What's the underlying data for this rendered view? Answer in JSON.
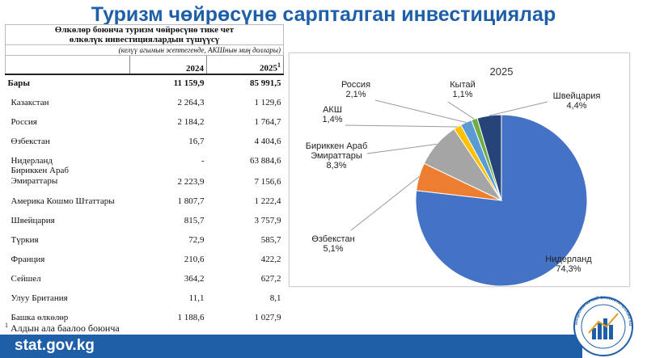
{
  "page": {
    "title": "Туризм чөйрөсүнө сарпталган инвестициялар",
    "site": "stat.gov.kg"
  },
  "table": {
    "header_line1": "Өлкөлөр боюнча  туризм чөйрөсүнө тике чет",
    "header_line2": "өлкөлүк инвестициялардын түшүүсү",
    "unit": "(келүү агымын эсептегенде, АКШнын миң доллары)",
    "col_2024": "2024",
    "col_2025": "2025",
    "col_2025_sup": "1",
    "total": {
      "name": "Бары",
      "v2024": "11 159,9",
      "v2025": "85 991,5"
    },
    "rows": [
      {
        "name": "Казакстан",
        "v2024": "2 264,3",
        "v2025": "1 129,6"
      },
      {
        "name": "Россия",
        "v2024": "2 184,2",
        "v2025": "1 764,7"
      },
      {
        "name": "Өзбекстан",
        "v2024": "16,7",
        "v2025": "4 404,6"
      },
      {
        "name": "Нидерланд",
        "v2024": "-",
        "v2025": "63 884,6"
      },
      {
        "name": "Бириккен Араб\nЭмираттары",
        "v2024": "2 223,9",
        "v2025": "7 156,6"
      },
      {
        "name": "Америка Кошмо Штаттары",
        "v2024": "1 807,7",
        "v2025": "1 222,4"
      },
      {
        "name": "Швейцария",
        "v2024": "815,7",
        "v2025": "3 757,9"
      },
      {
        "name": "Түркия",
        "v2024": "72,9",
        "v2025": "585,7"
      },
      {
        "name": "Франция",
        "v2024": "210,6",
        "v2025": "422,2"
      },
      {
        "name": "Сейшел",
        "v2024": "364,2",
        "v2025": "627,2"
      },
      {
        "name": "Улуу Британия",
        "v2024": "11,1",
        "v2025": "8,1"
      },
      {
        "name": "Башка өлкөлөр",
        "v2024": "1 188,6",
        "v2025": "1 027,9"
      }
    ],
    "footnote_mark": "1",
    "footnote": "Алдын ала баалоо боюнча"
  },
  "chart_data": {
    "type": "pie",
    "title": "2025",
    "slices": [
      {
        "label": "Нидерланд",
        "pct_text": "74,3%",
        "value": 74.3,
        "color": "#4472c4"
      },
      {
        "label": "Өзбекстан",
        "pct_text": "5,1%",
        "value": 5.1,
        "color": "#ed7d31"
      },
      {
        "label": "Бириккен Араб\nЭмираттары",
        "pct_text": "8,3%",
        "value": 8.3,
        "color": "#a5a5a5"
      },
      {
        "label": "АКШ",
        "pct_text": "1,4%",
        "value": 1.4,
        "color": "#ffc000"
      },
      {
        "label": "Россия",
        "pct_text": "2,1%",
        "value": 2.1,
        "color": "#5b9bd5"
      },
      {
        "label": "Кытай",
        "pct_text": "1,1%",
        "value": 1.1,
        "color": "#70ad47"
      },
      {
        "label": "Швейцария",
        "pct_text": "4,4%",
        "value": 4.4,
        "color": "#264478"
      }
    ]
  },
  "logo_text": "НАЦИОНАЛЬНЫЙ СТАТИСТИЧЕСКИЙ КОМИТЕТ • КЫРГЫЗСКОЙ РЕСПУБЛИКИ"
}
